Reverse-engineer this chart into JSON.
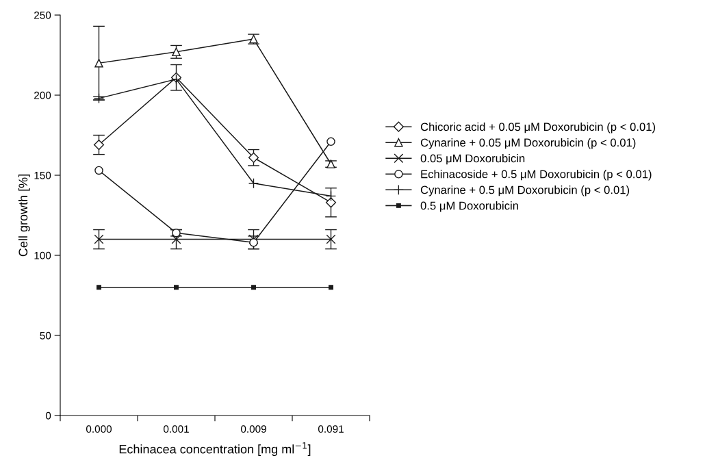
{
  "chart_data": {
    "type": "line",
    "xlabel": "Echinacea concentration [mg ml$^{−1}$]",
    "ylabel": "Cell growth [%]",
    "categories": [
      "0.000",
      "0.001",
      "0.009",
      "0.091"
    ],
    "ylim": [
      0,
      250
    ],
    "yticks": [
      0,
      50,
      100,
      150,
      200,
      250
    ],
    "grid": false,
    "legend": "right",
    "series": [
      {
        "name": "Chicoric acid + 0.05 μM Doxorubicin (p < 0.01)",
        "color": "#1a1a1a",
        "marker": "diamond",
        "values": [
          169,
          211,
          161,
          133
        ],
        "errors": [
          6,
          8,
          5,
          9
        ]
      },
      {
        "name": "Cynarine + 0.05 μM Doxorubicin (p < 0.01)",
        "color": "#1a1a1a",
        "marker": "triangle",
        "values": [
          220,
          227,
          235,
          157
        ],
        "errors": [
          23,
          4,
          3,
          2
        ]
      },
      {
        "name": "0.05 μM Doxorubicin",
        "color": "#1a1a1a",
        "marker": "cross",
        "values": [
          110,
          110,
          110,
          110
        ],
        "errors": [
          6,
          6,
          6,
          6
        ]
      },
      {
        "name": "Echinacoside + 0.5 μM Doxorubicin (p < 0.01)",
        "color": "#1a1a1a",
        "marker": "circle",
        "values": [
          153,
          114,
          108,
          171
        ],
        "errors": [
          null,
          2,
          4,
          null
        ]
      },
      {
        "name": "Cynarine + 0.5 μM Doxorubicin (p < 0.01)",
        "color": "#1a1a1a",
        "marker": "plus",
        "values": [
          198,
          210,
          145,
          137
        ],
        "errors": [
          1,
          null,
          null,
          null
        ]
      },
      {
        "name": "0.5 μM Doxorubicin",
        "color": "#1a1a1a",
        "marker": "square",
        "values": [
          80,
          80,
          80,
          80
        ]
      }
    ]
  }
}
